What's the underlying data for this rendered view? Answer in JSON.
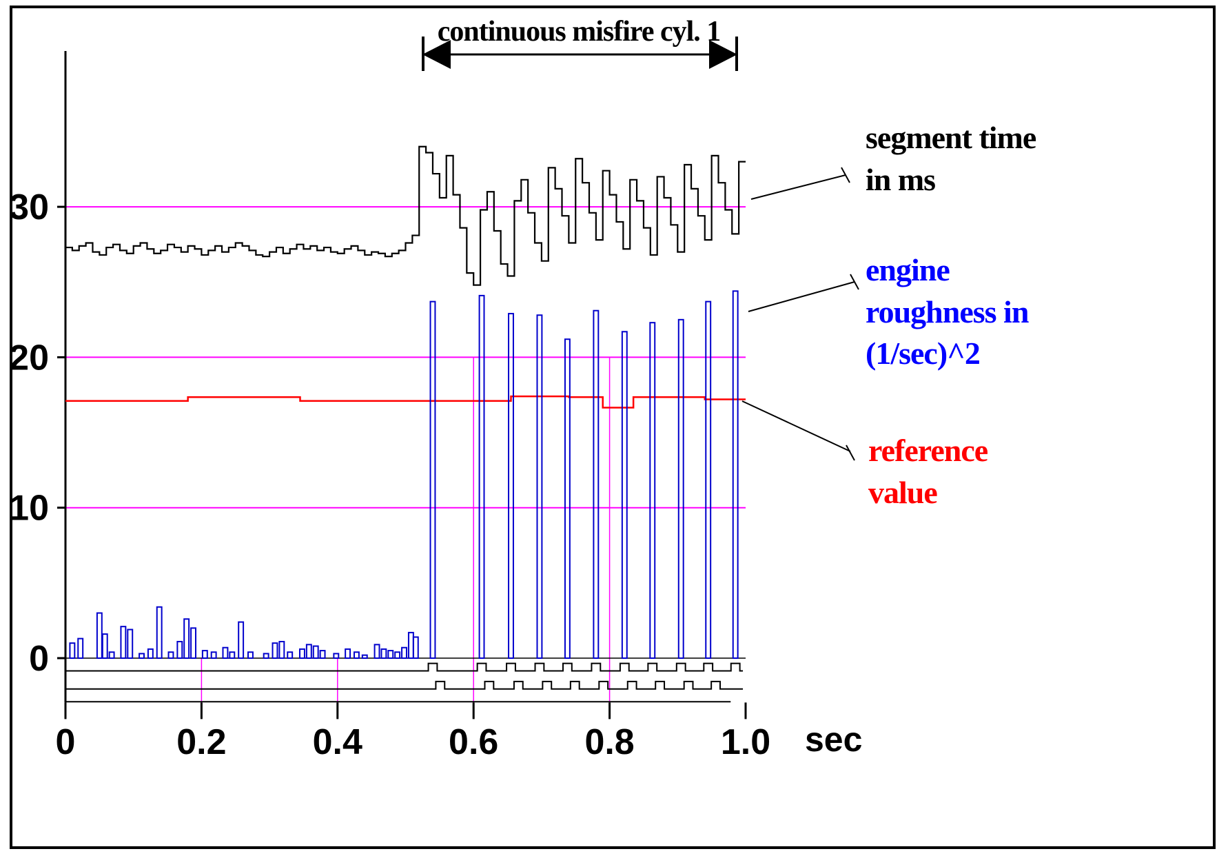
{
  "annotation": {
    "text": "continuous misfire cyl. 1"
  },
  "labels": {
    "segment_time": {
      "text": "segment time\nin ms",
      "color": "#000000"
    },
    "engine_roughness": {
      "text": "engine\nroughness in\n(1/sec)^2",
      "color": "#0000ff"
    },
    "reference": {
      "text": "reference\nvalue",
      "color": "#ff0000"
    }
  },
  "chart_data": {
    "type": "line",
    "title": "continuous misfire cyl. 1",
    "xlabel": "sec",
    "ylabel": "",
    "xlim": [
      0,
      1.0
    ],
    "ylim": [
      -3,
      40
    ],
    "x_ticks": [
      0,
      0.2,
      0.4,
      0.6,
      0.8,
      1.0
    ],
    "x_tick_labels": [
      "0",
      "0.2",
      "0.4",
      "0.6",
      "0.8",
      "1.0"
    ],
    "y_ticks": [
      0,
      10,
      20,
      30
    ],
    "y_tick_labels": [
      "0",
      "10",
      "20",
      "30"
    ],
    "grid": {
      "color": "#ff00ff",
      "h_lines": [
        10,
        20,
        30
      ],
      "v_lines_short": [
        0.2,
        0.4
      ],
      "v_lines_tall": [
        0.6,
        0.8
      ]
    },
    "series": [
      {
        "name": "segment time in ms",
        "color": "#000000",
        "style": "step",
        "x_start": 0,
        "dx": 0.01,
        "values": [
          27.3,
          27.1,
          27.4,
          27.6,
          27.0,
          26.8,
          27.3,
          27.5,
          27.1,
          26.9,
          27.4,
          27.6,
          27.2,
          26.9,
          27.1,
          27.5,
          27.3,
          27.0,
          27.4,
          27.2,
          26.8,
          27.1,
          27.4,
          27.0,
          27.3,
          27.6,
          27.4,
          27.1,
          26.8,
          26.7,
          27.0,
          27.3,
          26.9,
          27.2,
          27.5,
          27.2,
          27.4,
          27.1,
          27.3,
          27.0,
          26.9,
          27.2,
          27.4,
          27.1,
          26.8,
          27.0,
          26.9,
          26.7,
          26.9,
          27.1,
          27.6,
          28.1,
          34.0,
          33.6,
          32.2,
          30.6,
          33.4,
          30.8,
          28.6,
          25.6,
          24.8,
          29.8,
          31.0,
          28.4,
          26.2,
          25.4,
          30.4,
          31.8,
          29.6,
          27.6,
          26.4,
          32.6,
          31.2,
          29.4,
          27.6,
          33.2,
          31.6,
          29.6,
          27.8,
          32.4,
          30.8,
          29.0,
          27.2,
          31.8,
          30.4,
          28.6,
          26.8,
          32.0,
          30.6,
          28.8,
          27.0,
          32.8,
          31.2,
          29.4,
          27.8,
          33.4,
          31.6,
          29.8,
          28.2,
          33.0
        ]
      },
      {
        "name": "reference value",
        "color": "#ff0000",
        "style": "step-points",
        "points": [
          [
            0,
            17.1
          ],
          [
            0.18,
            17.35
          ],
          [
            0.345,
            17.1
          ],
          [
            0.655,
            17.4
          ],
          [
            0.74,
            17.35
          ],
          [
            0.79,
            16.65
          ],
          [
            0.835,
            17.35
          ],
          [
            0.94,
            17.2
          ],
          [
            1.0,
            17.2
          ]
        ]
      },
      {
        "name": "engine roughness in (1/sec)^2",
        "color": "#0000cc",
        "style": "bars",
        "bar_width": 0.007,
        "points": [
          [
            0.01,
            1.0
          ],
          [
            0.022,
            1.3
          ],
          [
            0.05,
            3.0
          ],
          [
            0.058,
            1.6
          ],
          [
            0.068,
            0.4
          ],
          [
            0.085,
            2.1
          ],
          [
            0.095,
            1.9
          ],
          [
            0.112,
            0.3
          ],
          [
            0.125,
            0.6
          ],
          [
            0.138,
            3.4
          ],
          [
            0.155,
            0.4
          ],
          [
            0.168,
            1.1
          ],
          [
            0.178,
            2.6
          ],
          [
            0.188,
            2.0
          ],
          [
            0.205,
            0.5
          ],
          [
            0.218,
            0.4
          ],
          [
            0.235,
            0.7
          ],
          [
            0.245,
            0.4
          ],
          [
            0.258,
            2.4
          ],
          [
            0.272,
            0.4
          ],
          [
            0.295,
            0.3
          ],
          [
            0.308,
            1.0
          ],
          [
            0.318,
            1.1
          ],
          [
            0.33,
            0.4
          ],
          [
            0.348,
            0.6
          ],
          [
            0.358,
            0.9
          ],
          [
            0.368,
            0.8
          ],
          [
            0.378,
            0.5
          ],
          [
            0.398,
            0.3
          ],
          [
            0.415,
            0.6
          ],
          [
            0.428,
            0.4
          ],
          [
            0.44,
            0.2
          ],
          [
            0.458,
            0.9
          ],
          [
            0.468,
            0.6
          ],
          [
            0.478,
            0.5
          ],
          [
            0.488,
            0.4
          ],
          [
            0.498,
            0.7
          ],
          [
            0.508,
            1.7
          ],
          [
            0.515,
            1.4
          ],
          [
            0.54,
            23.7
          ],
          [
            0.612,
            24.1
          ],
          [
            0.655,
            22.9
          ],
          [
            0.697,
            22.8
          ],
          [
            0.738,
            21.2
          ],
          [
            0.78,
            23.1
          ],
          [
            0.822,
            21.7
          ],
          [
            0.863,
            22.3
          ],
          [
            0.905,
            22.5
          ],
          [
            0.945,
            23.7
          ],
          [
            0.985,
            24.4
          ]
        ]
      }
    ],
    "digital_traces": [
      {
        "baseline": -0.85,
        "high": -0.35,
        "pulse_width": 0.013,
        "x_end": 0.996,
        "pulses": [
          0.54,
          0.612,
          0.655,
          0.697,
          0.738,
          0.78,
          0.822,
          0.863,
          0.905,
          0.945,
          0.985
        ]
      },
      {
        "baseline": -2.05,
        "high": -1.55,
        "pulse_width": 0.013,
        "x_end": 0.996,
        "pulses": [
          0.551,
          0.623,
          0.666,
          0.708,
          0.749,
          0.791,
          0.833,
          0.874,
          0.916,
          0.956
        ]
      }
    ],
    "baseline_line": {
      "y": -2.9,
      "x_start": 0,
      "x_end": 0.978
    }
  }
}
